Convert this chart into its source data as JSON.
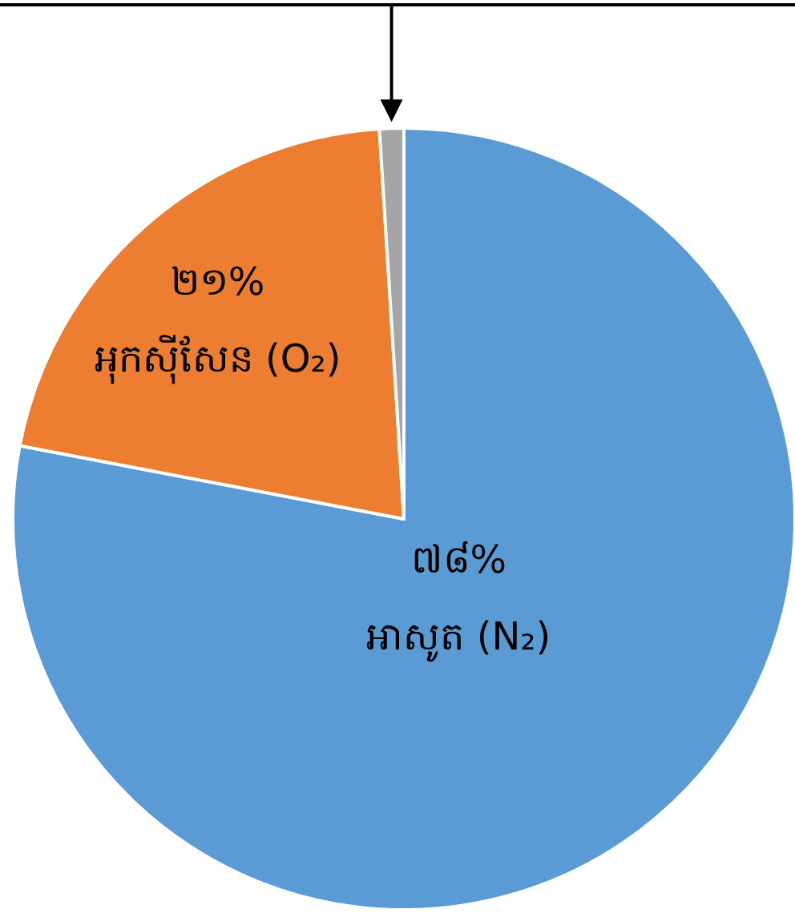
{
  "chart_data": {
    "type": "pie",
    "categories": [
      "អាសូត (N₂)",
      "អុកស៊ីសែន (O₂)",
      null
    ],
    "values": [
      78,
      21,
      1
    ],
    "colors": [
      "#5b9bd5",
      "#ed7d31",
      "#a5a5a5"
    ],
    "value_labels": [
      "៧៨%",
      "២១%",
      null
    ]
  }
}
